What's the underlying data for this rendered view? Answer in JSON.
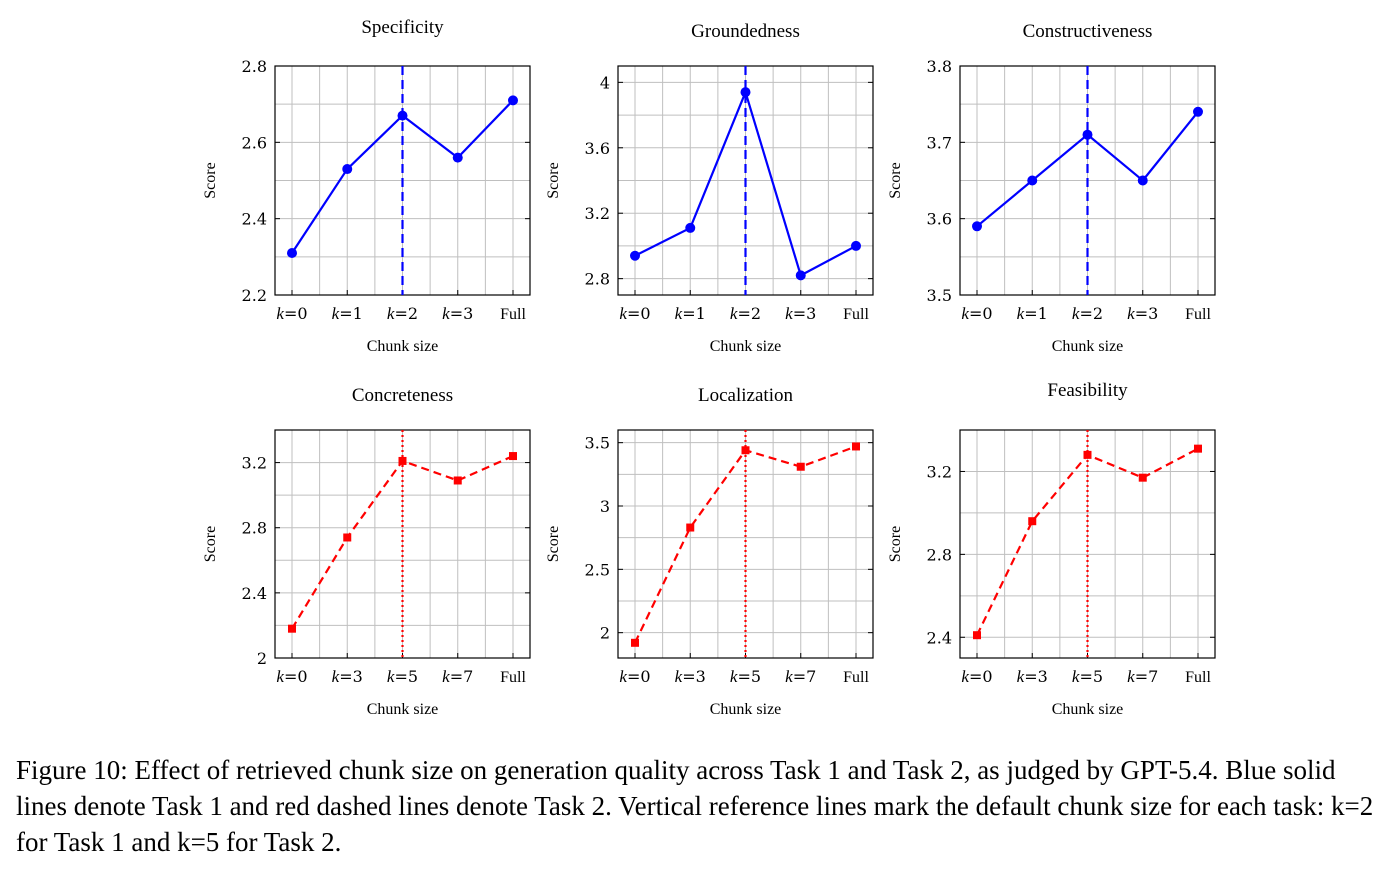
{
  "chart_data": [
    {
      "type": "line",
      "title": "Specificity",
      "xlabel": "Chunk size",
      "ylabel": "Score",
      "categories": [
        "k=0",
        "k=1",
        "k=2",
        "k=3",
        "Full"
      ],
      "series": [
        {
          "values": [
            2.31,
            2.53,
            2.67,
            2.56,
            2.71
          ],
          "color": "#0000ff",
          "line_style": "solid",
          "marker": "circle"
        }
      ],
      "ylim": [
        2.2,
        2.8
      ],
      "yticks": [
        2.2,
        2.4,
        2.6,
        2.8
      ],
      "reference_line": {
        "category": "k=2",
        "style": "dashed",
        "color": "#0000ff"
      },
      "grid": true
    },
    {
      "type": "line",
      "title": "Groundedness",
      "xlabel": "Chunk size",
      "ylabel": "Score",
      "categories": [
        "k=0",
        "k=1",
        "k=2",
        "k=3",
        "Full"
      ],
      "series": [
        {
          "values": [
            2.94,
            3.11,
            3.94,
            2.82,
            3.0
          ],
          "color": "#0000ff",
          "line_style": "solid",
          "marker": "circle"
        }
      ],
      "ylim": [
        2.7,
        4.1
      ],
      "yticks": [
        2.8,
        3.2,
        3.6,
        4
      ],
      "reference_line": {
        "category": "k=2",
        "style": "dashed",
        "color": "#0000ff"
      },
      "grid": true
    },
    {
      "type": "line",
      "title": "Constructiveness",
      "xlabel": "Chunk size",
      "ylabel": "Score",
      "categories": [
        "k=0",
        "k=1",
        "k=2",
        "k=3",
        "Full"
      ],
      "series": [
        {
          "values": [
            3.59,
            3.65,
            3.71,
            3.65,
            3.74
          ],
          "color": "#0000ff",
          "line_style": "solid",
          "marker": "circle"
        }
      ],
      "ylim": [
        3.5,
        3.8
      ],
      "yticks": [
        3.5,
        3.6,
        3.7,
        3.8
      ],
      "reference_line": {
        "category": "k=2",
        "style": "dashed",
        "color": "#0000ff"
      },
      "grid": true
    },
    {
      "type": "line",
      "title": "Concreteness",
      "xlabel": "Chunk size",
      "ylabel": "Score",
      "categories": [
        "k=0",
        "k=3",
        "k=5",
        "k=7",
        "Full"
      ],
      "series": [
        {
          "values": [
            2.18,
            2.74,
            3.21,
            3.09,
            3.24
          ],
          "color": "#ff0000",
          "line_style": "dashed",
          "marker": "square"
        }
      ],
      "ylim": [
        2.0,
        3.4
      ],
      "yticks": [
        2,
        2.4,
        2.8,
        3.2
      ],
      "reference_line": {
        "category": "k=5",
        "style": "dotted",
        "color": "#ff0000"
      },
      "grid": true
    },
    {
      "type": "line",
      "title": "Localization",
      "xlabel": "Chunk size",
      "ylabel": "Score",
      "categories": [
        "k=0",
        "k=3",
        "k=5",
        "k=7",
        "Full"
      ],
      "series": [
        {
          "values": [
            1.92,
            2.83,
            3.44,
            3.31,
            3.47
          ],
          "color": "#ff0000",
          "line_style": "dashed",
          "marker": "square"
        }
      ],
      "ylim": [
        1.8,
        3.6
      ],
      "yticks": [
        2,
        2.5,
        3,
        3.5
      ],
      "reference_line": {
        "category": "k=5",
        "style": "dotted",
        "color": "#ff0000"
      },
      "grid": true
    },
    {
      "type": "line",
      "title": "Feasibility",
      "xlabel": "Chunk size",
      "ylabel": "Score",
      "categories": [
        "k=0",
        "k=3",
        "k=5",
        "k=7",
        "Full"
      ],
      "series": [
        {
          "values": [
            2.41,
            2.96,
            3.28,
            3.17,
            3.31
          ],
          "color": "#ff0000",
          "line_style": "dashed",
          "marker": "square"
        }
      ],
      "ylim": [
        2.3,
        3.4
      ],
      "yticks": [
        2.4,
        2.8,
        3.2
      ],
      "reference_line": {
        "category": "k=5",
        "style": "dotted",
        "color": "#ff0000"
      },
      "grid": true
    }
  ],
  "caption": "Figure 10: Effect of retrieved chunk size on generation quality across Task 1 and Task 2, as judged by GPT-5.4. Blue solid lines denote Task 1 and red dashed lines denote Task 2. Vertical reference lines mark the default chunk size for each task: k=2 for Task 1 and k=5 for Task 2."
}
